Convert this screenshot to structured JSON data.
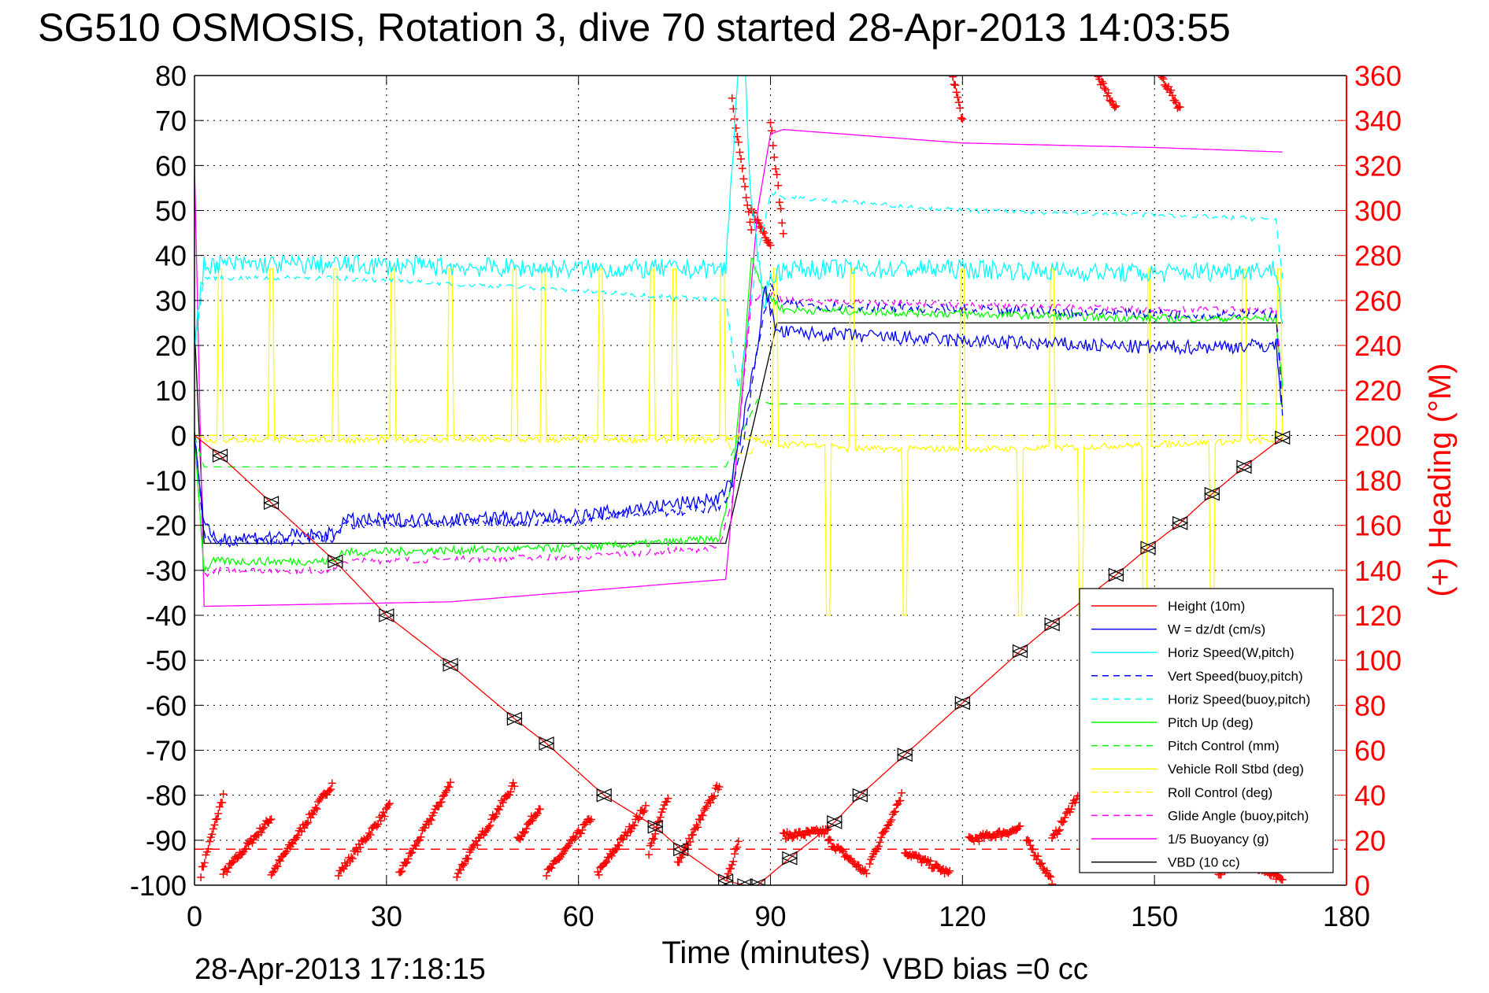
{
  "chart_data": {
    "type": "line",
    "title": "SG510 OSMOSIS, Rotation 3, dive 70 started 28-Apr-2013 14:03:55",
    "xlabel": "Time (minutes)",
    "ylabel_right": "(+) Heading (°M)",
    "footer_left": "28-Apr-2013 17:18:15",
    "footer_right": "VBD bias =0 cc",
    "xlim": [
      0,
      180
    ],
    "ylim": [
      -100,
      80
    ],
    "ylim_right": [
      0,
      360
    ],
    "xticks": [
      "0",
      "30",
      "60",
      "90",
      "120",
      "150",
      "180"
    ],
    "yticks": [
      "80",
      "70",
      "60",
      "50",
      "40",
      "30",
      "20",
      "10",
      "0",
      "-10",
      "-20",
      "-30",
      "-40",
      "-50",
      "-60",
      "-70",
      "-80",
      "-90",
      "-100"
    ],
    "yticks_right": [
      "360",
      "340",
      "320",
      "300",
      "280",
      "260",
      "240",
      "220",
      "200",
      "180",
      "160",
      "140",
      "120",
      "100",
      "80",
      "60",
      "40",
      "20",
      "0"
    ],
    "grid": true,
    "legend_position": "bottom-right",
    "colors": {
      "axis_right": "#ff0000"
    },
    "series": [
      {
        "name": "Height (10m)",
        "color": "#ff0000",
        "dash": "",
        "noise": 0,
        "markers": true,
        "points": [
          [
            0,
            0
          ],
          [
            4,
            -4.5
          ],
          [
            12,
            -15
          ],
          [
            22,
            -28
          ],
          [
            30,
            -40
          ],
          [
            40,
            -51
          ],
          [
            50,
            -63
          ],
          [
            55,
            -68.5
          ],
          [
            64,
            -80
          ],
          [
            72,
            -87
          ],
          [
            76,
            -92
          ],
          [
            83,
            -99
          ],
          [
            86,
            -100
          ],
          [
            88,
            -100
          ],
          [
            93,
            -94
          ],
          [
            100,
            -86
          ],
          [
            104,
            -80
          ],
          [
            111,
            -71
          ],
          [
            120,
            -59.5
          ],
          [
            129,
            -48
          ],
          [
            134,
            -42
          ],
          [
            144,
            -31
          ],
          [
            149,
            -25
          ],
          [
            154,
            -19.5
          ],
          [
            159,
            -13
          ],
          [
            164,
            -7
          ],
          [
            170,
            -0.5
          ]
        ]
      },
      {
        "name": "W = dz/dt (cm/s)",
        "color": "#0000ff",
        "dash": "",
        "noise": 1.6,
        "points": [
          [
            0,
            0
          ],
          [
            1.5,
            -20
          ],
          [
            3,
            -23
          ],
          [
            22,
            -22
          ],
          [
            23,
            -19
          ],
          [
            60,
            -18
          ],
          [
            82,
            -14
          ],
          [
            84,
            -10
          ],
          [
            86,
            5
          ],
          [
            88,
            20
          ],
          [
            89,
            33
          ],
          [
            91,
            23
          ],
          [
            120,
            21
          ],
          [
            150,
            19.5
          ],
          [
            169,
            20
          ],
          [
            170,
            5
          ]
        ]
      },
      {
        "name": "Horiz Speed(W,pitch)",
        "color": "#00ffff",
        "dash": "",
        "noise": 2.2,
        "points": [
          [
            0,
            20
          ],
          [
            1.5,
            38
          ],
          [
            20,
            38
          ],
          [
            60,
            37
          ],
          [
            83,
            37
          ],
          [
            84,
            60
          ],
          [
            85,
            82
          ],
          [
            86,
            82
          ],
          [
            87,
            50
          ],
          [
            89,
            30
          ],
          [
            90,
            35
          ],
          [
            92,
            37
          ],
          [
            120,
            37
          ],
          [
            150,
            36
          ],
          [
            169,
            37
          ],
          [
            170,
            25
          ]
        ]
      },
      {
        "name": "Vert Speed(buoy,pitch)",
        "color": "#0000ff",
        "dash": "10,8",
        "noise": 1.0,
        "points": [
          [
            0,
            0
          ],
          [
            1.5,
            -22
          ],
          [
            3,
            -24
          ],
          [
            22,
            -23
          ],
          [
            23,
            -20
          ],
          [
            60,
            -19
          ],
          [
            82,
            -16
          ],
          [
            84,
            -12
          ],
          [
            86,
            0
          ],
          [
            88,
            20
          ],
          [
            90,
            33
          ],
          [
            92,
            29
          ],
          [
            120,
            28
          ],
          [
            150,
            27
          ],
          [
            169,
            27
          ],
          [
            170,
            5
          ]
        ]
      },
      {
        "name": "Horiz Speed(buoy,pitch)",
        "color": "#00ffff",
        "dash": "10,8",
        "noise": 0.5,
        "points": [
          [
            0,
            20
          ],
          [
            1.5,
            35
          ],
          [
            22,
            35
          ],
          [
            50,
            33
          ],
          [
            83,
            30
          ],
          [
            85,
            10
          ],
          [
            88,
            40
          ],
          [
            90,
            54
          ],
          [
            92,
            53
          ],
          [
            120,
            50
          ],
          [
            150,
            49
          ],
          [
            169,
            48
          ],
          [
            170,
            35
          ]
        ]
      },
      {
        "name": "Pitch Up (deg)",
        "color": "#00ff00",
        "dash": "",
        "noise": 0.9,
        "points": [
          [
            0,
            0
          ],
          [
            1.5,
            -30
          ],
          [
            3,
            -28
          ],
          [
            22,
            -28
          ],
          [
            23,
            -26
          ],
          [
            60,
            -25
          ],
          [
            82,
            -23
          ],
          [
            84,
            -10
          ],
          [
            86,
            20
          ],
          [
            87,
            40
          ],
          [
            89,
            32
          ],
          [
            92,
            28
          ],
          [
            120,
            27
          ],
          [
            150,
            26
          ],
          [
            169,
            26
          ],
          [
            170,
            10
          ]
        ]
      },
      {
        "name": "Pitch Control (mm)",
        "color": "#00ff00",
        "dash": "10,8",
        "noise": 0,
        "points": [
          [
            0,
            0
          ],
          [
            1.5,
            -7
          ],
          [
            83,
            -7
          ],
          [
            84,
            -4
          ],
          [
            88,
            8
          ],
          [
            90,
            7
          ],
          [
            170,
            7
          ]
        ]
      },
      {
        "name": "Vehicle Roll Stbd (deg)",
        "color": "#ffff00",
        "dash": "",
        "noise": 0.7,
        "points": [
          [
            0,
            0
          ],
          [
            2,
            -1
          ],
          [
            83,
            -1
          ],
          [
            85,
            0
          ],
          [
            90,
            -2
          ],
          [
            100,
            -2
          ],
          [
            101,
            -3
          ],
          [
            130,
            -3
          ],
          [
            150,
            -2
          ],
          [
            170,
            -1
          ]
        ],
        "spikes": [
          [
            4,
            37
          ],
          [
            12,
            37
          ],
          [
            22,
            37
          ],
          [
            31,
            37
          ],
          [
            40,
            37
          ],
          [
            50,
            37
          ],
          [
            54.5,
            37
          ],
          [
            63.5,
            37
          ],
          [
            71.5,
            37
          ],
          [
            75,
            37
          ],
          [
            82.5,
            37
          ],
          [
            90.8,
            37
          ],
          [
            102.7,
            37
          ],
          [
            120,
            37
          ],
          [
            134,
            37
          ],
          [
            149,
            37
          ],
          [
            164,
            37
          ],
          [
            169.5,
            37
          ],
          [
            99,
            -40
          ],
          [
            111,
            -40
          ],
          [
            129,
            -40
          ],
          [
            138.5,
            -40
          ],
          [
            148.5,
            -40
          ],
          [
            159,
            -40
          ]
        ]
      },
      {
        "name": "Roll Control (deg)",
        "color": "#ffff00",
        "dash": "10,8",
        "noise": 0,
        "points": [
          [
            0,
            0
          ],
          [
            83,
            0
          ],
          [
            84,
            -4
          ],
          [
            87,
            -4
          ],
          [
            88,
            0
          ],
          [
            170,
            0
          ]
        ]
      },
      {
        "name": "Glide Angle (buoy,pitch)",
        "color": "#ff00ff",
        "dash": "10,8",
        "noise": 0.7,
        "points": [
          [
            0,
            0
          ],
          [
            1.5,
            -31
          ],
          [
            3,
            -30
          ],
          [
            22,
            -30
          ],
          [
            23,
            -28
          ],
          [
            60,
            -27
          ],
          [
            82,
            -25
          ],
          [
            84,
            -15
          ],
          [
            87,
            30
          ],
          [
            89,
            32
          ],
          [
            92,
            30
          ],
          [
            120,
            29
          ],
          [
            150,
            28
          ],
          [
            169,
            28
          ],
          [
            170,
            10
          ]
        ]
      },
      {
        "name": "1/5 Buoyancy (g)",
        "color": "#ff00ff",
        "dash": "",
        "noise": 0,
        "points": [
          [
            0,
            60
          ],
          [
            1.5,
            -38
          ],
          [
            40,
            -37
          ],
          [
            83,
            -32
          ],
          [
            85,
            0
          ],
          [
            88,
            50
          ],
          [
            90,
            67
          ],
          [
            92,
            68
          ],
          [
            120,
            65
          ],
          [
            150,
            64
          ],
          [
            170,
            63
          ]
        ]
      },
      {
        "name": "VBD (10 cc)",
        "color": "#000000",
        "dash": "",
        "noise": 0,
        "points": [
          [
            0,
            24
          ],
          [
            1.5,
            -24
          ],
          [
            83,
            -24
          ],
          [
            91,
            25
          ],
          [
            170,
            25
          ]
        ]
      }
    ],
    "heading": {
      "name": "Heading",
      "color": "#ff0000",
      "reference_value": 16,
      "segments": [
        [
          1,
          4.5,
          5,
          40
        ],
        [
          4.5,
          12,
          5,
          30
        ],
        [
          12,
          21.5,
          5,
          45
        ],
        [
          22.5,
          30.5,
          5,
          35
        ],
        [
          32,
          40,
          5,
          45
        ],
        [
          41,
          50,
          5,
          45
        ],
        [
          50.5,
          54,
          20,
          35
        ],
        [
          55,
          62,
          5,
          30
        ],
        [
          63,
          70.5,
          5,
          35
        ],
        [
          71,
          74,
          15,
          40
        ],
        [
          75.5,
          82,
          10,
          45
        ],
        [
          83,
          85,
          0,
          20
        ],
        [
          84,
          87,
          350,
          290
        ],
        [
          87,
          90,
          300,
          285
        ],
        [
          90,
          92,
          340,
          290
        ],
        [
          92,
          99,
          22,
          24
        ],
        [
          99,
          105,
          20,
          5
        ],
        [
          105.5,
          110.5,
          10,
          40
        ],
        [
          111,
          118,
          15,
          5
        ],
        [
          118.5,
          120,
          360,
          340
        ],
        [
          121,
          129,
          20,
          25
        ],
        [
          130,
          134,
          20,
          2
        ],
        [
          134,
          138,
          20,
          40
        ],
        [
          141,
          144,
          360,
          345
        ],
        [
          151,
          154,
          360,
          345
        ],
        [
          160,
          166,
          5,
          20
        ],
        [
          166,
          170,
          8,
          2
        ]
      ]
    }
  }
}
